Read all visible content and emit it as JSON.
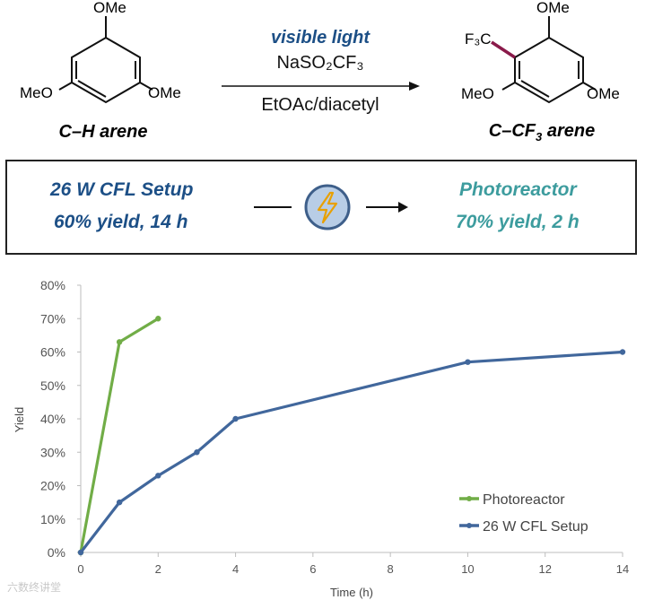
{
  "scheme": {
    "reactant_label": "C–H arene",
    "product_label_pre": "C–CF",
    "product_label_sub": "3",
    "product_label_post": " arene",
    "reactant_sub_top": "OMe",
    "reactant_sub_left": "MeO",
    "reactant_sub_right": "OMe",
    "product_sub_top": "OMe",
    "product_sub_left": "MeO",
    "product_sub_right": "OMe",
    "product_cf3": "F₃C",
    "condition_1": "visible light",
    "condition_2": "NaSO₂CF₃",
    "condition_3": "EtOAc/diacetyl",
    "colors": {
      "condition_1": "#1c4f86",
      "cf3_bond": "#8a1a4a"
    }
  },
  "comparison": {
    "left_title": "26 W CFL Setup",
    "left_result": "60% yield, 14 h",
    "right_title": "Photoreactor",
    "right_result": "70% yield, 2 h",
    "icon": "lightning-bolt-icon",
    "colors": {
      "left": "#1c4f86",
      "right": "#3d9c9e"
    }
  },
  "chart_data": {
    "type": "line",
    "xlabel": "Time (h)",
    "ylabel": "Yield",
    "xlim": [
      0,
      14
    ],
    "ylim": [
      0,
      80
    ],
    "x_ticks": [
      "0",
      "2",
      "4",
      "6",
      "8",
      "10",
      "12",
      "14"
    ],
    "y_ticks": [
      "0%",
      "10%",
      "20%",
      "30%",
      "40%",
      "50%",
      "60%",
      "70%",
      "80%"
    ],
    "grid": false,
    "legend_position": "bottom-right",
    "series": [
      {
        "name": "Photoreactor",
        "color": "#71ad47",
        "x": [
          0,
          1,
          2
        ],
        "y": [
          0,
          63,
          70
        ]
      },
      {
        "name": "26 W CFL Setup",
        "color": "#41679c",
        "x": [
          0,
          1,
          2,
          3,
          4,
          10,
          14
        ],
        "y": [
          0,
          15,
          23,
          30,
          40,
          57,
          60
        ]
      }
    ]
  },
  "watermark": "六数终讲堂"
}
